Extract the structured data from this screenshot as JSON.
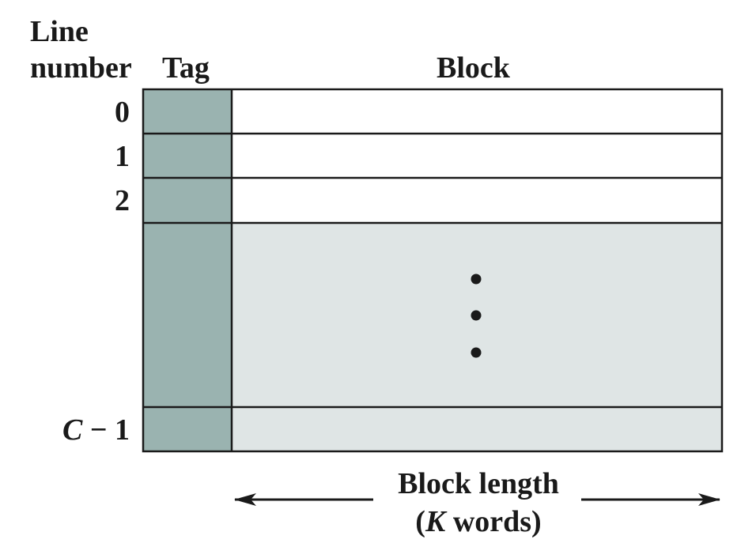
{
  "headers": {
    "line_number_line1": "Line",
    "line_number_line2": "number",
    "tag": "Tag",
    "block": "Block"
  },
  "rows": {
    "r0": "0",
    "r1": "1",
    "r2": "2",
    "last_var": "C",
    "last_rest": " − 1"
  },
  "ellipsis": "• • •",
  "block_length": {
    "line1": "Block length",
    "paren_open": "(",
    "k": "K",
    "line2_rest": " words)"
  },
  "colors": {
    "tag_fill": "#9ab3b0",
    "block_filled": "#ffffff",
    "block_empty": "#dfe5e5",
    "stroke": "#1a1a1a"
  }
}
